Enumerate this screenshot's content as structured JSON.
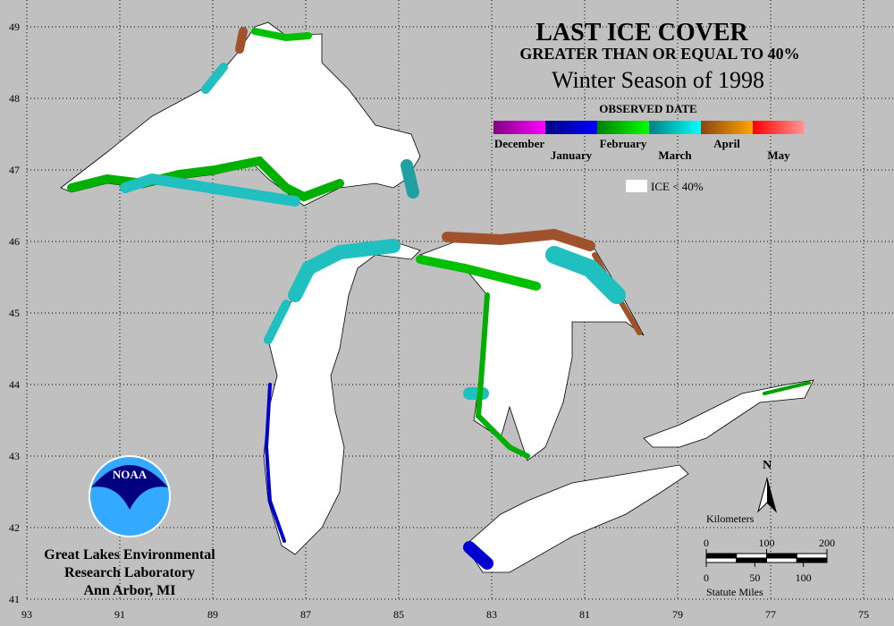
{
  "title": {
    "line1": "LAST ICE COVER",
    "line2": "GREATER THAN OR EQUAL TO 40%",
    "line3": "Winter Season of 1998"
  },
  "legend": {
    "heading": "OBSERVED DATE",
    "months": [
      {
        "name": "December",
        "colors": [
          "#800080",
          "#ff00ff"
        ]
      },
      {
        "name": "January",
        "colors": [
          "#000080",
          "#0000ff"
        ]
      },
      {
        "name": "February",
        "colors": [
          "#008000",
          "#00ff00"
        ]
      },
      {
        "name": "March",
        "colors": [
          "#008080",
          "#00ffff"
        ]
      },
      {
        "name": "April",
        "colors": [
          "#8b4513",
          "#ffa500"
        ]
      },
      {
        "name": "May",
        "colors": [
          "#ff0000",
          "#ff9999"
        ]
      }
    ],
    "ice_note": "ICE < 40%"
  },
  "grid": {
    "longitudes": [
      93,
      91,
      89,
      87,
      85,
      83,
      81,
      79,
      77,
      75
    ],
    "latitudes": [
      49,
      48,
      47,
      46,
      45,
      44,
      43,
      42,
      41
    ]
  },
  "scale": {
    "kilometers_label": "Kilometers",
    "km_ticks": [
      0,
      100,
      200
    ],
    "mile_ticks": [
      0,
      50,
      100
    ],
    "miles_label": "Statute Miles",
    "north": "N"
  },
  "logo": "NOAA",
  "credit": [
    "Great Lakes Environmental",
    "Research Laboratory",
    "Ann Arbor, MI"
  ]
}
